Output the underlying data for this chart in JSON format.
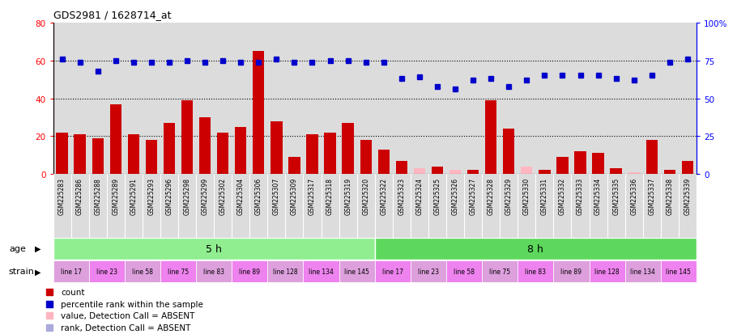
{
  "title": "GDS2981 / 1628714_at",
  "samples": [
    "GSM225283",
    "GSM225286",
    "GSM225288",
    "GSM225289",
    "GSM225291",
    "GSM225293",
    "GSM225296",
    "GSM225298",
    "GSM225299",
    "GSM225302",
    "GSM225304",
    "GSM225306",
    "GSM225307",
    "GSM225309",
    "GSM225317",
    "GSM225318",
    "GSM225319",
    "GSM225320",
    "GSM225322",
    "GSM225323",
    "GSM225324",
    "GSM225325",
    "GSM225326",
    "GSM225327",
    "GSM225328",
    "GSM225329",
    "GSM225330",
    "GSM225331",
    "GSM225332",
    "GSM225333",
    "GSM225334",
    "GSM225335",
    "GSM225336",
    "GSM225337",
    "GSM225338",
    "GSM225339"
  ],
  "count_values": [
    22,
    21,
    19,
    37,
    21,
    18,
    27,
    39,
    30,
    22,
    25,
    65,
    28,
    9,
    21,
    22,
    27,
    18,
    13,
    7,
    3,
    4,
    2,
    2,
    39,
    24,
    4,
    2,
    9,
    12,
    11,
    3,
    1,
    18,
    2,
    7
  ],
  "count_absent": [
    false,
    false,
    false,
    false,
    false,
    false,
    false,
    false,
    false,
    false,
    false,
    false,
    false,
    false,
    false,
    false,
    false,
    false,
    false,
    false,
    true,
    false,
    true,
    false,
    false,
    false,
    true,
    false,
    false,
    false,
    false,
    false,
    true,
    false,
    false,
    false
  ],
  "percentile_values": [
    76,
    74,
    68,
    75,
    74,
    74,
    74,
    75,
    74,
    75,
    74,
    74,
    76,
    74,
    74,
    75,
    75,
    74,
    74,
    63,
    64,
    58,
    56,
    62,
    63,
    58,
    62,
    65,
    65,
    65,
    65,
    63,
    62,
    65,
    74,
    76
  ],
  "percentile_absent": [
    false,
    false,
    false,
    false,
    false,
    false,
    false,
    false,
    false,
    false,
    false,
    false,
    false,
    false,
    false,
    false,
    false,
    false,
    false,
    false,
    false,
    false,
    false,
    false,
    false,
    false,
    false,
    false,
    false,
    false,
    false,
    false,
    false,
    false,
    false,
    false
  ],
  "age_groups": [
    {
      "label": "5 h",
      "start": 0,
      "end": 18,
      "color": "#90EE90"
    },
    {
      "label": "8 h",
      "start": 18,
      "end": 36,
      "color": "#5DD85D"
    }
  ],
  "strain_groups": [
    {
      "label": "line 17",
      "start": 0,
      "end": 2
    },
    {
      "label": "line 23",
      "start": 2,
      "end": 4
    },
    {
      "label": "line 58",
      "start": 4,
      "end": 6
    },
    {
      "label": "line 75",
      "start": 6,
      "end": 8
    },
    {
      "label": "line 83",
      "start": 8,
      "end": 10
    },
    {
      "label": "line 89",
      "start": 10,
      "end": 12
    },
    {
      "label": "line 128",
      "start": 12,
      "end": 14
    },
    {
      "label": "line 134",
      "start": 14,
      "end": 16
    },
    {
      "label": "line 145",
      "start": 16,
      "end": 18
    },
    {
      "label": "line 17",
      "start": 18,
      "end": 20
    },
    {
      "label": "line 23",
      "start": 20,
      "end": 22
    },
    {
      "label": "line 58",
      "start": 22,
      "end": 24
    },
    {
      "label": "line 75",
      "start": 24,
      "end": 26
    },
    {
      "label": "line 83",
      "start": 26,
      "end": 28
    },
    {
      "label": "line 89",
      "start": 28,
      "end": 30
    },
    {
      "label": "line 128",
      "start": 30,
      "end": 32
    },
    {
      "label": "line 134",
      "start": 32,
      "end": 34
    },
    {
      "label": "line 145",
      "start": 34,
      "end": 36
    }
  ],
  "bar_color": "#CC0000",
  "bar_absent_color": "#FFB6C1",
  "dot_color": "#0000CC",
  "dot_absent_color": "#AAAADD",
  "ylim_left": [
    0,
    80
  ],
  "ylim_right": [
    0,
    100
  ],
  "yticks_left": [
    0,
    20,
    40,
    60,
    80
  ],
  "yticks_right": [
    0,
    25,
    50,
    75,
    100
  ],
  "ytick_labels_right": [
    "0",
    "25",
    "50",
    "75",
    "100%"
  ],
  "grid_values": [
    20,
    40,
    60
  ],
  "bg_color": "#DCDCDC",
  "age_label": "age",
  "strain_label": "strain",
  "legend": [
    {
      "label": "count",
      "color": "#CC0000"
    },
    {
      "label": "percentile rank within the sample",
      "color": "#0000CC"
    },
    {
      "label": "value, Detection Call = ABSENT",
      "color": "#FFB6C1"
    },
    {
      "label": "rank, Detection Call = ABSENT",
      "color": "#AAAADD"
    }
  ]
}
